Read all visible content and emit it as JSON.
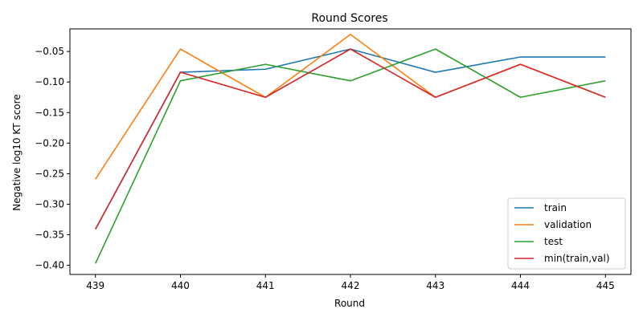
{
  "chart_data": {
    "type": "line",
    "title": "Round Scores",
    "xlabel": "Round",
    "ylabel": "Negative log10 KT score",
    "x": [
      439,
      440,
      441,
      442,
      443,
      444,
      445
    ],
    "xlim": [
      438.7,
      445.3
    ],
    "ylim": [
      -0.415,
      -0.013
    ],
    "yticks": [
      -0.4,
      -0.35,
      -0.3,
      -0.25,
      -0.2,
      -0.15,
      -0.1,
      -0.05
    ],
    "ytick_labels": [
      "−0.40",
      "−0.35",
      "−0.30",
      "−0.25",
      "−0.20",
      "−0.15",
      "−0.10",
      "−0.05"
    ],
    "grid": false,
    "legend_position": "lower-right",
    "series": [
      {
        "name": "train",
        "color": "#1f77b4",
        "values": [
          -0.341,
          -0.084,
          -0.079,
          -0.046,
          -0.084,
          -0.059,
          -0.059
        ]
      },
      {
        "name": "validation",
        "color": "#ff7f0e",
        "values": [
          -0.259,
          -0.046,
          -0.125,
          -0.022,
          -0.125,
          -0.071,
          -0.125
        ]
      },
      {
        "name": "test",
        "color": "#2ca02c",
        "values": [
          -0.397,
          -0.098,
          -0.071,
          -0.098,
          -0.046,
          -0.125,
          -0.098
        ]
      },
      {
        "name": "min(train,val)",
        "color": "#d62728",
        "values": [
          -0.341,
          -0.084,
          -0.125,
          -0.046,
          -0.125,
          -0.071,
          -0.125
        ]
      }
    ]
  }
}
